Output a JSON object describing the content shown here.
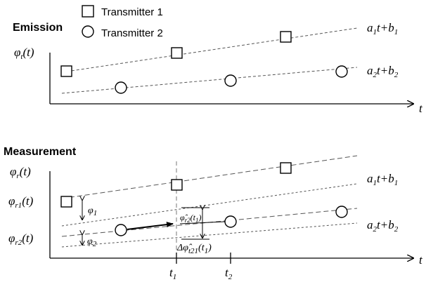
{
  "legend": {
    "transmitter1": "Transmitter 1",
    "transmitter2": "Transmitter 2"
  },
  "emission": {
    "heading": "Emission",
    "y_axis": {
      "base": "φ",
      "sub": "t",
      "arg": "(t)"
    },
    "x_axis_label": "t",
    "line1": {
      "a": "a",
      "a_sub": "1",
      "mid": "t+",
      "b": "b",
      "b_sub": "1"
    },
    "line2": {
      "a": "a",
      "a_sub": "2",
      "mid": "t+",
      "b": "b",
      "b_sub": "2"
    }
  },
  "measurement": {
    "heading": "Measurement",
    "y_axis": {
      "base": "φ",
      "sub": "r",
      "arg": "(t)"
    },
    "x_axis_label": "t",
    "row1": {
      "base": "φ",
      "sub": "r1",
      "arg": "(t)"
    },
    "row2": {
      "base": "φ",
      "sub": "r2",
      "arg": "(t)"
    },
    "phi1": {
      "base": "φ",
      "sub": "1"
    },
    "phi2": {
      "base": "φ",
      "sub": "2"
    },
    "hat_label": {
      "base": "φ̂",
      "sub": "r2",
      "arg": "(t",
      "arg_sub": "1",
      "close": ")"
    },
    "delta_label": {
      "base": "Δφ̂",
      "sub": "t21",
      "arg": "(t",
      "arg_sub": "1",
      "close": ")"
    },
    "t1": {
      "base": "t",
      "sub": "1"
    },
    "t2": {
      "base": "t",
      "sub": "2"
    },
    "line1": {
      "a": "a",
      "a_sub": "1",
      "mid": "t+",
      "b": "b",
      "b_sub": "1"
    },
    "line2": {
      "a": "a",
      "a_sub": "2",
      "mid": "t+",
      "b": "b",
      "b_sub": "2"
    }
  },
  "colors": {
    "ink": "#000000",
    "dash": "#555555",
    "background": "#ffffff"
  }
}
